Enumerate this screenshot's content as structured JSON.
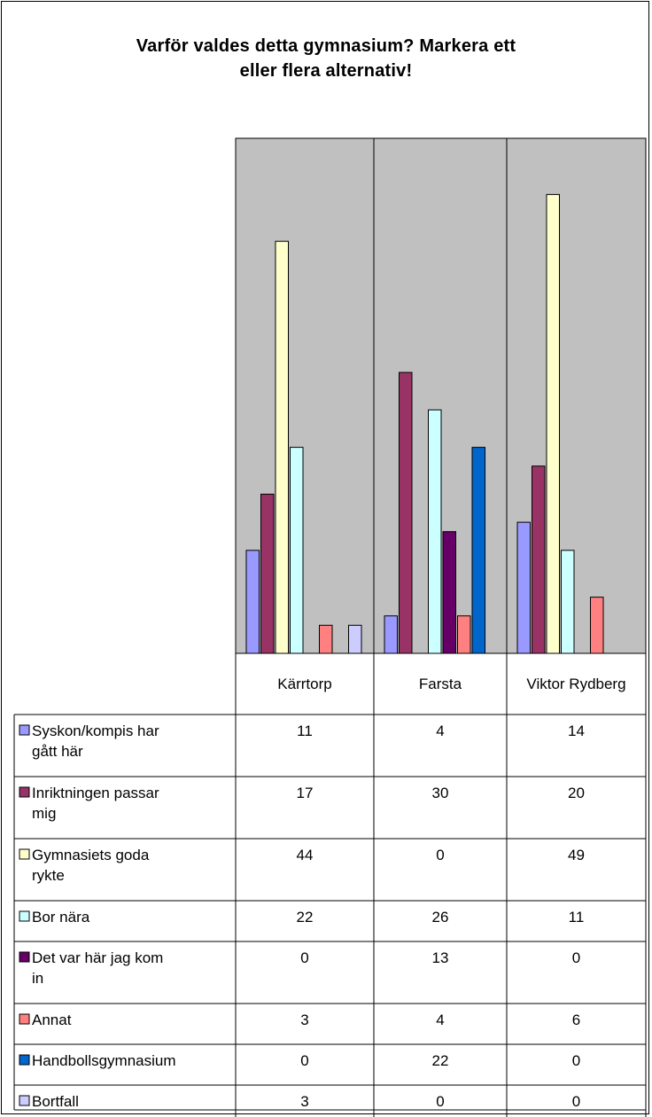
{
  "chart_data": {
    "type": "bar",
    "title_lines": [
      "Varför valdes detta gymnasium? Markera ett",
      "eller flera alternativ!"
    ],
    "categories": [
      "Kärrtorp",
      "Farsta",
      "Viktor Rydberg"
    ],
    "series": [
      {
        "name": "Syskon/kompis har gått här",
        "label_lines": [
          "Syskon/kompis har",
          "gått här"
        ],
        "color": "#9999FF",
        "values": [
          11,
          4,
          14
        ]
      },
      {
        "name": "Inriktningen passar mig",
        "label_lines": [
          "Inriktningen passar",
          "mig"
        ],
        "color": "#993366",
        "values": [
          17,
          30,
          20
        ]
      },
      {
        "name": "Gymnasiets goda rykte",
        "label_lines": [
          "Gymnasiets goda",
          "rykte"
        ],
        "color": "#FFFFCC",
        "values": [
          44,
          0,
          49
        ]
      },
      {
        "name": "Bor nära",
        "label_lines": [
          "Bor nära"
        ],
        "color": "#CCFFFF",
        "values": [
          22,
          26,
          11
        ]
      },
      {
        "name": "Det var här jag kom in",
        "label_lines": [
          "Det var här jag kom",
          "in"
        ],
        "color": "#660066",
        "values": [
          0,
          13,
          0
        ]
      },
      {
        "name": "Annat",
        "label_lines": [
          "Annat"
        ],
        "color": "#FF8080",
        "values": [
          3,
          4,
          6
        ]
      },
      {
        "name": "Handbollsgymnasium",
        "label_lines": [
          "Handbollsgymnasium"
        ],
        "color": "#0066CC",
        "values": [
          0,
          22,
          0
        ]
      },
      {
        "name": "Bortfall",
        "label_lines": [
          "Bortfall"
        ],
        "color": "#CCCCFF",
        "values": [
          3,
          0,
          0
        ]
      }
    ],
    "ylim": [
      0,
      55
    ],
    "plot_background": "#C0C0C0",
    "grid": false,
    "legend": "data-table"
  }
}
